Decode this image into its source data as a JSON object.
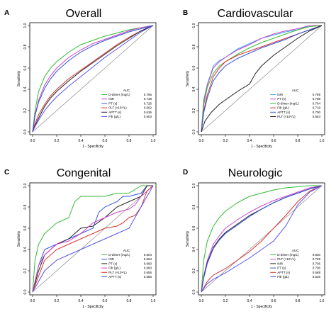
{
  "figure": {
    "background": "#ffffff"
  },
  "chart_data": [
    {
      "type": "line",
      "panel_letter": "A",
      "title": "Overall",
      "xlabel": "1 - Specificity",
      "ylabel": "Sensitivity",
      "xlim": [
        0,
        1
      ],
      "ylim": [
        0,
        1
      ],
      "xticks": [
        "0.0",
        "0.2",
        "0.4",
        "0.6",
        "0.8",
        "1.0"
      ],
      "yticks": [
        "0.0",
        "0.2",
        "0.4",
        "0.6",
        "0.8",
        "1.0"
      ],
      "legend_title": "AUC",
      "legend_position": "bottom-right",
      "grid": false,
      "reference_line": true,
      "series": [
        {
          "name": "D-dimer (mg/L)",
          "auc": "0.766",
          "color": "#33bb33",
          "x": [
            0,
            0.02,
            0.05,
            0.1,
            0.15,
            0.2,
            0.3,
            0.4,
            0.5,
            0.6,
            0.7,
            0.8,
            0.9,
            1.0
          ],
          "y": [
            0,
            0.2,
            0.38,
            0.52,
            0.6,
            0.66,
            0.75,
            0.82,
            0.86,
            0.9,
            0.93,
            0.96,
            0.98,
            1.0
          ]
        },
        {
          "name": "INR",
          "auc": "0.738",
          "color": "#cc44cc",
          "x": [
            0,
            0.02,
            0.05,
            0.1,
            0.15,
            0.2,
            0.3,
            0.4,
            0.5,
            0.6,
            0.7,
            0.8,
            0.9,
            1.0
          ],
          "y": [
            0,
            0.16,
            0.3,
            0.44,
            0.53,
            0.6,
            0.7,
            0.77,
            0.83,
            0.87,
            0.91,
            0.95,
            0.98,
            1.0
          ]
        },
        {
          "name": "PT (s)",
          "auc": "0.726",
          "color": "#3355dd",
          "x": [
            0,
            0.02,
            0.05,
            0.1,
            0.15,
            0.2,
            0.3,
            0.4,
            0.5,
            0.6,
            0.7,
            0.8,
            0.9,
            1.0
          ],
          "y": [
            0,
            0.15,
            0.28,
            0.41,
            0.5,
            0.57,
            0.67,
            0.75,
            0.81,
            0.86,
            0.9,
            0.94,
            0.97,
            1.0
          ]
        },
        {
          "name": "PLT (×10⁹/L)",
          "auc": "0.662",
          "color": "#dd3333",
          "x": [
            0,
            0.02,
            0.05,
            0.1,
            0.15,
            0.2,
            0.3,
            0.4,
            0.5,
            0.6,
            0.7,
            0.8,
            0.9,
            1.0
          ],
          "y": [
            0,
            0.08,
            0.16,
            0.26,
            0.34,
            0.4,
            0.5,
            0.58,
            0.66,
            0.74,
            0.82,
            0.89,
            0.95,
            1.0
          ]
        },
        {
          "name": "APTT (s)",
          "auc": "0.636",
          "color": "#222222",
          "x": [
            0,
            0.02,
            0.05,
            0.1,
            0.15,
            0.2,
            0.3,
            0.4,
            0.5,
            0.6,
            0.7,
            0.8,
            0.9,
            1.0
          ],
          "y": [
            0,
            0.06,
            0.13,
            0.24,
            0.32,
            0.38,
            0.48,
            0.57,
            0.65,
            0.73,
            0.81,
            0.88,
            0.95,
            1.0
          ]
        },
        {
          "name": "Fib (g/L)",
          "auc": "0.603",
          "color": "#5555ee",
          "x": [
            0,
            0.02,
            0.05,
            0.1,
            0.15,
            0.2,
            0.3,
            0.4,
            0.5,
            0.6,
            0.7,
            0.8,
            0.9,
            1.0
          ],
          "y": [
            0,
            0.05,
            0.11,
            0.2,
            0.27,
            0.33,
            0.43,
            0.52,
            0.61,
            0.7,
            0.78,
            0.86,
            0.94,
            1.0
          ]
        }
      ]
    },
    {
      "type": "line",
      "panel_letter": "B",
      "title": "Cardiovascular",
      "xlabel": "1 - Specificity",
      "ylabel": "Sensitivity",
      "xlim": [
        0,
        1
      ],
      "ylim": [
        0,
        1
      ],
      "xticks": [
        "0.0",
        "0.2",
        "0.4",
        "0.6",
        "0.8",
        "1.0"
      ],
      "yticks": [
        "0.0",
        "0.2",
        "0.4",
        "0.6",
        "0.8",
        "1.0"
      ],
      "legend_title": "AUC",
      "legend_position": "bottom-right",
      "grid": false,
      "reference_line": true,
      "series": [
        {
          "name": "INR",
          "auc": "0.789",
          "color": "#33aaee",
          "x": [
            0,
            0.02,
            0.05,
            0.08,
            0.1,
            0.15,
            0.2,
            0.3,
            0.4,
            0.5,
            0.6,
            0.7,
            0.8,
            0.9,
            1.0
          ],
          "y": [
            0,
            0.3,
            0.45,
            0.55,
            0.62,
            0.67,
            0.7,
            0.78,
            0.83,
            0.88,
            0.91,
            0.94,
            0.96,
            1.0,
            1.0
          ]
        },
        {
          "name": "PT (s)",
          "auc": "0.788",
          "color": "#cc44cc",
          "x": [
            0,
            0.02,
            0.05,
            0.08,
            0.1,
            0.15,
            0.2,
            0.3,
            0.4,
            0.5,
            0.6,
            0.7,
            0.8,
            0.9,
            1.0
          ],
          "y": [
            0,
            0.28,
            0.44,
            0.54,
            0.6,
            0.66,
            0.7,
            0.77,
            0.82,
            0.88,
            0.92,
            0.95,
            0.97,
            1.0,
            1.0
          ]
        },
        {
          "name": "D-dimer (mg/L)",
          "auc": "0.764",
          "color": "#33bb33",
          "x": [
            0,
            0.02,
            0.05,
            0.08,
            0.1,
            0.15,
            0.2,
            0.3,
            0.4,
            0.5,
            0.6,
            0.7,
            0.8,
            0.9,
            1.0
          ],
          "y": [
            0,
            0.25,
            0.42,
            0.5,
            0.55,
            0.62,
            0.66,
            0.73,
            0.79,
            0.84,
            0.88,
            0.92,
            0.96,
            0.99,
            1.0
          ]
        },
        {
          "name": "Fib (g/L)",
          "auc": "0.719",
          "color": "#dd3333",
          "x": [
            0,
            0.02,
            0.05,
            0.08,
            0.1,
            0.15,
            0.2,
            0.3,
            0.4,
            0.5,
            0.6,
            0.7,
            0.8,
            0.9,
            1.0
          ],
          "y": [
            0,
            0.2,
            0.35,
            0.45,
            0.52,
            0.6,
            0.66,
            0.72,
            0.76,
            0.8,
            0.84,
            0.88,
            0.92,
            0.96,
            1.0
          ]
        },
        {
          "name": "APTT (s)",
          "auc": "0.700",
          "color": "#3355dd",
          "x": [
            0,
            0.02,
            0.05,
            0.08,
            0.1,
            0.15,
            0.2,
            0.3,
            0.4,
            0.5,
            0.6,
            0.7,
            0.8,
            0.9,
            1.0
          ],
          "y": [
            0,
            0.18,
            0.32,
            0.42,
            0.48,
            0.56,
            0.62,
            0.69,
            0.74,
            0.79,
            0.83,
            0.87,
            0.92,
            0.96,
            1.0
          ]
        },
        {
          "name": "PLT (×10⁹/L)",
          "auc": "0.553",
          "color": "#222222",
          "x": [
            0,
            0.03,
            0.08,
            0.15,
            0.2,
            0.3,
            0.4,
            0.45,
            0.5,
            0.55,
            0.6,
            0.7,
            0.8,
            0.9,
            1.0
          ],
          "y": [
            0,
            0.1,
            0.18,
            0.26,
            0.3,
            0.38,
            0.45,
            0.55,
            0.62,
            0.67,
            0.72,
            0.8,
            0.88,
            0.95,
            1.0
          ]
        }
      ]
    },
    {
      "type": "line",
      "panel_letter": "C",
      "title": "Congenital",
      "xlabel": "1 - Specificity",
      "ylabel": "Sensitivity",
      "xlim": [
        0,
        1
      ],
      "ylim": [
        0,
        1
      ],
      "xticks": [
        "0.0",
        "0.2",
        "0.4",
        "0.6",
        "0.8",
        "1.0"
      ],
      "yticks": [
        "0.0",
        "0.2",
        "0.4",
        "0.6",
        "0.8",
        "1.0"
      ],
      "legend_title": "AUC",
      "legend_position": "bottom-right",
      "grid": false,
      "reference_line": true,
      "series": [
        {
          "name": "D-dimer (mg/L)",
          "auc": "0.804",
          "color": "#33bb33",
          "x": [
            0,
            0.02,
            0.05,
            0.1,
            0.15,
            0.2,
            0.3,
            0.35,
            0.4,
            0.5,
            0.6,
            0.7,
            0.8,
            0.9,
            1.0
          ],
          "y": [
            0,
            0.3,
            0.45,
            0.55,
            0.6,
            0.65,
            0.7,
            0.85,
            0.9,
            0.9,
            0.9,
            0.93,
            0.93,
            1.0,
            1.0
          ]
        },
        {
          "name": "INR",
          "auc": "0.664",
          "color": "#3355dd",
          "x": [
            0,
            0.05,
            0.1,
            0.2,
            0.3,
            0.4,
            0.5,
            0.55,
            0.6,
            0.7,
            0.75,
            0.8,
            0.9,
            0.95,
            1.0
          ],
          "y": [
            0,
            0.25,
            0.4,
            0.45,
            0.5,
            0.55,
            0.6,
            0.75,
            0.8,
            0.85,
            0.9,
            0.9,
            0.93,
            1.0,
            1.0
          ]
        },
        {
          "name": "PT (s)",
          "auc": "0.660",
          "color": "#222222",
          "x": [
            0,
            0.05,
            0.1,
            0.2,
            0.3,
            0.35,
            0.4,
            0.5,
            0.6,
            0.65,
            0.7,
            0.8,
            0.9,
            0.95,
            1.0
          ],
          "y": [
            0,
            0.2,
            0.35,
            0.45,
            0.5,
            0.55,
            0.6,
            0.62,
            0.7,
            0.75,
            0.8,
            0.85,
            0.9,
            1.0,
            1.0
          ]
        },
        {
          "name": "Fib (g/L)",
          "auc": "0.660",
          "color": "#cc44cc",
          "x": [
            0,
            0.05,
            0.1,
            0.2,
            0.3,
            0.4,
            0.45,
            0.5,
            0.6,
            0.7,
            0.8,
            0.85,
            0.9,
            0.95,
            1.0
          ],
          "y": [
            0,
            0.25,
            0.35,
            0.45,
            0.48,
            0.55,
            0.6,
            0.65,
            0.7,
            0.75,
            0.78,
            0.82,
            0.9,
            0.95,
            1.0
          ]
        },
        {
          "name": "PLT (×10⁹/L)",
          "auc": "0.655",
          "color": "#dd3333",
          "x": [
            0,
            0.05,
            0.1,
            0.2,
            0.3,
            0.4,
            0.5,
            0.6,
            0.7,
            0.75,
            0.8,
            0.85,
            0.9,
            0.95,
            1.0
          ],
          "y": [
            0,
            0.15,
            0.3,
            0.4,
            0.45,
            0.5,
            0.55,
            0.6,
            0.62,
            0.65,
            0.7,
            0.72,
            0.8,
            0.95,
            1.0
          ]
        },
        {
          "name": "APTT (s)",
          "auc": "0.555",
          "color": "#5555ee",
          "x": [
            0,
            0.05,
            0.1,
            0.2,
            0.3,
            0.4,
            0.5,
            0.6,
            0.7,
            0.8,
            0.85,
            0.9,
            0.95,
            1.0
          ],
          "y": [
            0,
            0.1,
            0.2,
            0.3,
            0.35,
            0.4,
            0.45,
            0.5,
            0.55,
            0.6,
            0.7,
            0.8,
            0.9,
            1.0
          ]
        }
      ]
    },
    {
      "type": "line",
      "panel_letter": "D",
      "title": "Neurologic",
      "xlabel": "1 - Specificity",
      "ylabel": "Sensitivity",
      "xlim": [
        0,
        1
      ],
      "ylim": [
        0,
        1
      ],
      "xticks": [
        "0.0",
        "0.2",
        "0.4",
        "0.6",
        "0.8",
        "1.0"
      ],
      "yticks": [
        "0.0",
        "0.2",
        "0.4",
        "0.6",
        "0.8",
        "1.0"
      ],
      "legend_title": "AUC",
      "legend_position": "bottom-right",
      "grid": false,
      "reference_line": true,
      "series": [
        {
          "name": "D-dimer (mg/L)",
          "auc": "0.830",
          "color": "#33bb33",
          "x": [
            0,
            0.02,
            0.05,
            0.1,
            0.15,
            0.2,
            0.3,
            0.4,
            0.5,
            0.6,
            0.7,
            0.8,
            0.9,
            1.0
          ],
          "y": [
            0,
            0.3,
            0.48,
            0.62,
            0.7,
            0.76,
            0.84,
            0.9,
            0.93,
            0.96,
            0.98,
            0.99,
            1.0,
            1.0
          ]
        },
        {
          "name": "PLT (×10⁹/L)",
          "auc": "0.729",
          "color": "#cc44cc",
          "x": [
            0,
            0.02,
            0.05,
            0.1,
            0.15,
            0.2,
            0.3,
            0.4,
            0.5,
            0.6,
            0.7,
            0.8,
            0.9,
            1.0
          ],
          "y": [
            0,
            0.15,
            0.3,
            0.45,
            0.53,
            0.6,
            0.68,
            0.75,
            0.81,
            0.86,
            0.9,
            0.94,
            0.98,
            1.0
          ]
        },
        {
          "name": "INR",
          "auc": "0.706",
          "color": "#222222",
          "x": [
            0,
            0.02,
            0.05,
            0.1,
            0.15,
            0.2,
            0.3,
            0.4,
            0.5,
            0.6,
            0.7,
            0.8,
            0.9,
            1.0
          ],
          "y": [
            0,
            0.14,
            0.28,
            0.42,
            0.5,
            0.56,
            0.64,
            0.72,
            0.78,
            0.84,
            0.89,
            0.93,
            0.97,
            1.0
          ]
        },
        {
          "name": "PT (s)",
          "auc": "0.706",
          "color": "#3355dd",
          "x": [
            0,
            0.02,
            0.05,
            0.1,
            0.15,
            0.2,
            0.3,
            0.4,
            0.5,
            0.6,
            0.7,
            0.8,
            0.9,
            1.0
          ],
          "y": [
            0,
            0.13,
            0.27,
            0.41,
            0.49,
            0.55,
            0.63,
            0.71,
            0.78,
            0.84,
            0.89,
            0.93,
            0.97,
            1.0
          ]
        },
        {
          "name": "APTT (s)",
          "auc": "0.588",
          "color": "#dd3333",
          "x": [
            0,
            0.05,
            0.1,
            0.2,
            0.3,
            0.4,
            0.5,
            0.6,
            0.7,
            0.8,
            0.9,
            1.0
          ],
          "y": [
            0,
            0.1,
            0.16,
            0.22,
            0.3,
            0.38,
            0.48,
            0.6,
            0.72,
            0.85,
            0.95,
            1.0
          ]
        },
        {
          "name": "Fib (g/L)",
          "auc": "0.526",
          "color": "#5555ee",
          "x": [
            0,
            0.05,
            0.1,
            0.2,
            0.3,
            0.4,
            0.5,
            0.6,
            0.7,
            0.8,
            0.9,
            1.0
          ],
          "y": [
            0,
            0.08,
            0.12,
            0.18,
            0.25,
            0.32,
            0.4,
            0.48,
            0.62,
            0.82,
            0.94,
            1.0
          ]
        }
      ]
    }
  ]
}
